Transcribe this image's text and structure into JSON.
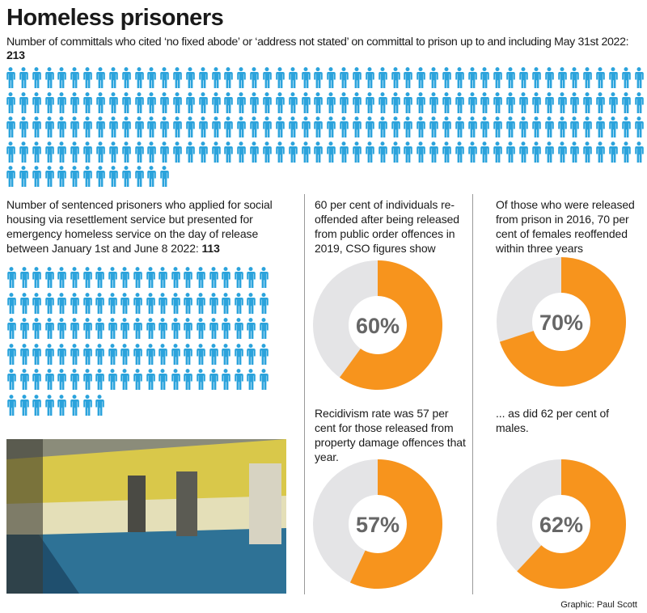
{
  "title": "Homeless prisoners",
  "committals": {
    "text": "Number of committals who cited ‘no fixed abode’ or ‘address not stated’ on committal to prison up to and including May 31st 2022:",
    "value": "213",
    "count": 213
  },
  "sentenced": {
    "text": "Number of sentenced prisoners who applied for social housing via resettlement service but presented for emergency homeless service on the day of release between January 1st and June 8 2022:",
    "value": "113",
    "count": 113
  },
  "colors": {
    "pictogram": "#2ba3dc",
    "donut_fill": "#f7941d",
    "donut_rest": "#e4e4e6",
    "donut_label": "#666666"
  },
  "icons": {
    "pictogram": "person-icon"
  },
  "chart_data": [
    {
      "type": "pie",
      "variant": "donut",
      "caption": "60 per cent of individuals re-offended after being released from public order offences in 2019, CSO figures show",
      "value": 60,
      "label": "60%"
    },
    {
      "type": "pie",
      "variant": "donut",
      "caption": "Of those who were released from prison in 2016, 70 per cent of females reoffended within three years",
      "value": 70,
      "label": "70%"
    },
    {
      "type": "pie",
      "variant": "donut",
      "caption": "Recidivism rate was 57 per cent for those released from property damage offences that year.",
      "value": 57,
      "label": "57%"
    },
    {
      "type": "pie",
      "variant": "donut",
      "caption": "... as did 62 per cent of males.",
      "value": 62,
      "label": "62%"
    }
  ],
  "credit": "Graphic: Paul Scott"
}
